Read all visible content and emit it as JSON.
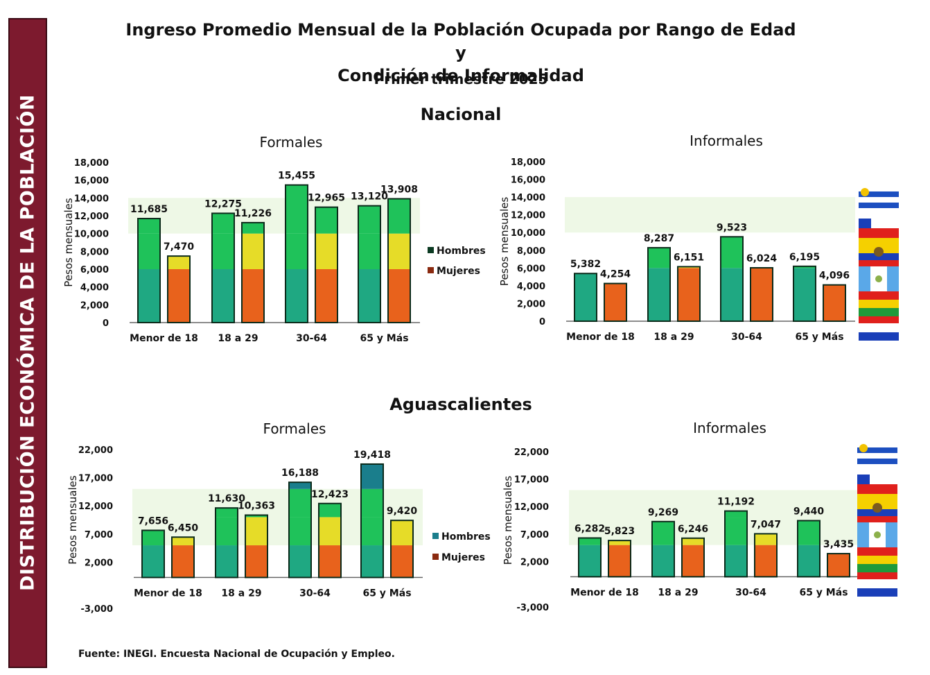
{
  "sidebar": {
    "text": "DISTRIBUCIÓN ECONÓMICA DE LA POBLACIÓN"
  },
  "title": {
    "line1": "Ingreso Promedio Mensual de la Población Ocupada por Rango de Edad y",
    "line2": "Condición de Informalidad",
    "period": "Primer trimestre 2025"
  },
  "sections": {
    "nacional": "Nacional",
    "aguascalientes": "Aguascalientes"
  },
  "source": "Fuente: INEGI. Encuesta Nacional de Ocupación y Empleo.",
  "colors": {
    "green": "#1fc25a",
    "teal": "#1fa882",
    "orange": "#e8621c",
    "yellow": "#e6dc28",
    "dark_teal": "#1a7e8c",
    "bar_outline": "#0b2a1a"
  },
  "legend": {
    "hombres": "Hombres",
    "mujeres": "Mujeres"
  },
  "chart_data": [
    {
      "type": "bar",
      "region": "Nacional",
      "title": "Formales",
      "ylabel": "Pesos mensuales",
      "categories": [
        "Menor de 18",
        "18 a 29",
        "30-64",
        "65 y Más"
      ],
      "yticks": [
        "0",
        "2,000",
        "4,000",
        "6,000",
        "8,000",
        "10,000",
        "12,000",
        "14,000",
        "16,000",
        "18,000"
      ],
      "ylim": [
        0,
        18000
      ],
      "series": [
        {
          "name": "Hombres",
          "values": [
            11685,
            12275,
            15455,
            13120
          ],
          "labels": [
            "11,685",
            "12,275",
            "15,455",
            "13,120"
          ]
        },
        {
          "name": "Mujeres",
          "values": [
            7470,
            11226,
            12965,
            13908
          ],
          "labels": [
            "7,470",
            "11,226",
            "12,965",
            "13,908"
          ]
        }
      ],
      "legend_position": "right"
    },
    {
      "type": "bar",
      "region": "Nacional",
      "title": "Informales",
      "ylabel": "Pesos mensuales",
      "categories": [
        "Menor de 18",
        "18 a 29",
        "30-64",
        "65 y Más"
      ],
      "yticks": [
        "0",
        "2,000",
        "4,000",
        "6,000",
        "8,000",
        "10,000",
        "12,000",
        "14,000",
        "16,000",
        "18,000"
      ],
      "ylim": [
        0,
        18000
      ],
      "series": [
        {
          "name": "Hombres",
          "values": [
            5382,
            8287,
            9523,
            6195
          ],
          "labels": [
            "5,382",
            "8,287",
            "9,523",
            "6,195"
          ]
        },
        {
          "name": "Mujeres",
          "values": [
            4254,
            6151,
            6024,
            4096
          ],
          "labels": [
            "4,254",
            "6,151",
            "6,024",
            "4,096"
          ]
        }
      ]
    },
    {
      "type": "bar",
      "region": "Aguascalientes",
      "title": "Formales",
      "ylabel": "Pesos mensuales",
      "categories": [
        "Menor de 18",
        "18 a 29",
        "30-64",
        "65 y Más"
      ],
      "yticks": [
        "-3,000",
        "2,000",
        "7,000",
        "12,000",
        "17,000",
        "22,000"
      ],
      "ylim": [
        -3000,
        22000
      ],
      "series": [
        {
          "name": "Hombres",
          "values": [
            7656,
            11630,
            16188,
            19418
          ],
          "labels": [
            "7,656",
            "11,630",
            "16,188",
            "19,418"
          ]
        },
        {
          "name": "Mujeres",
          "values": [
            6450,
            10363,
            12423,
            9420
          ],
          "labels": [
            "6,450",
            "10,363",
            "12,423",
            "9,420"
          ]
        }
      ],
      "legend_position": "right"
    },
    {
      "type": "bar",
      "region": "Aguascalientes",
      "title": "Informales",
      "ylabel": "Pesos mensuales",
      "categories": [
        "Menor de 18",
        "18 a 29",
        "30-64",
        "65 y Más"
      ],
      "yticks": [
        "-3,000",
        "2,000",
        "7,000",
        "12,000",
        "17,000",
        "22,000"
      ],
      "ylim": [
        -3000,
        22000
      ],
      "series": [
        {
          "name": "Hombres",
          "values": [
            6282,
            9269,
            11192,
            9440
          ],
          "labels": [
            "6,282",
            "9,269",
            "11,192",
            "9,440"
          ]
        },
        {
          "name": "Mujeres",
          "values": [
            5823,
            6246,
            7047,
            3435
          ],
          "labels": [
            "5,823",
            "6,246",
            "7,047",
            "3,435"
          ]
        }
      ]
    }
  ]
}
